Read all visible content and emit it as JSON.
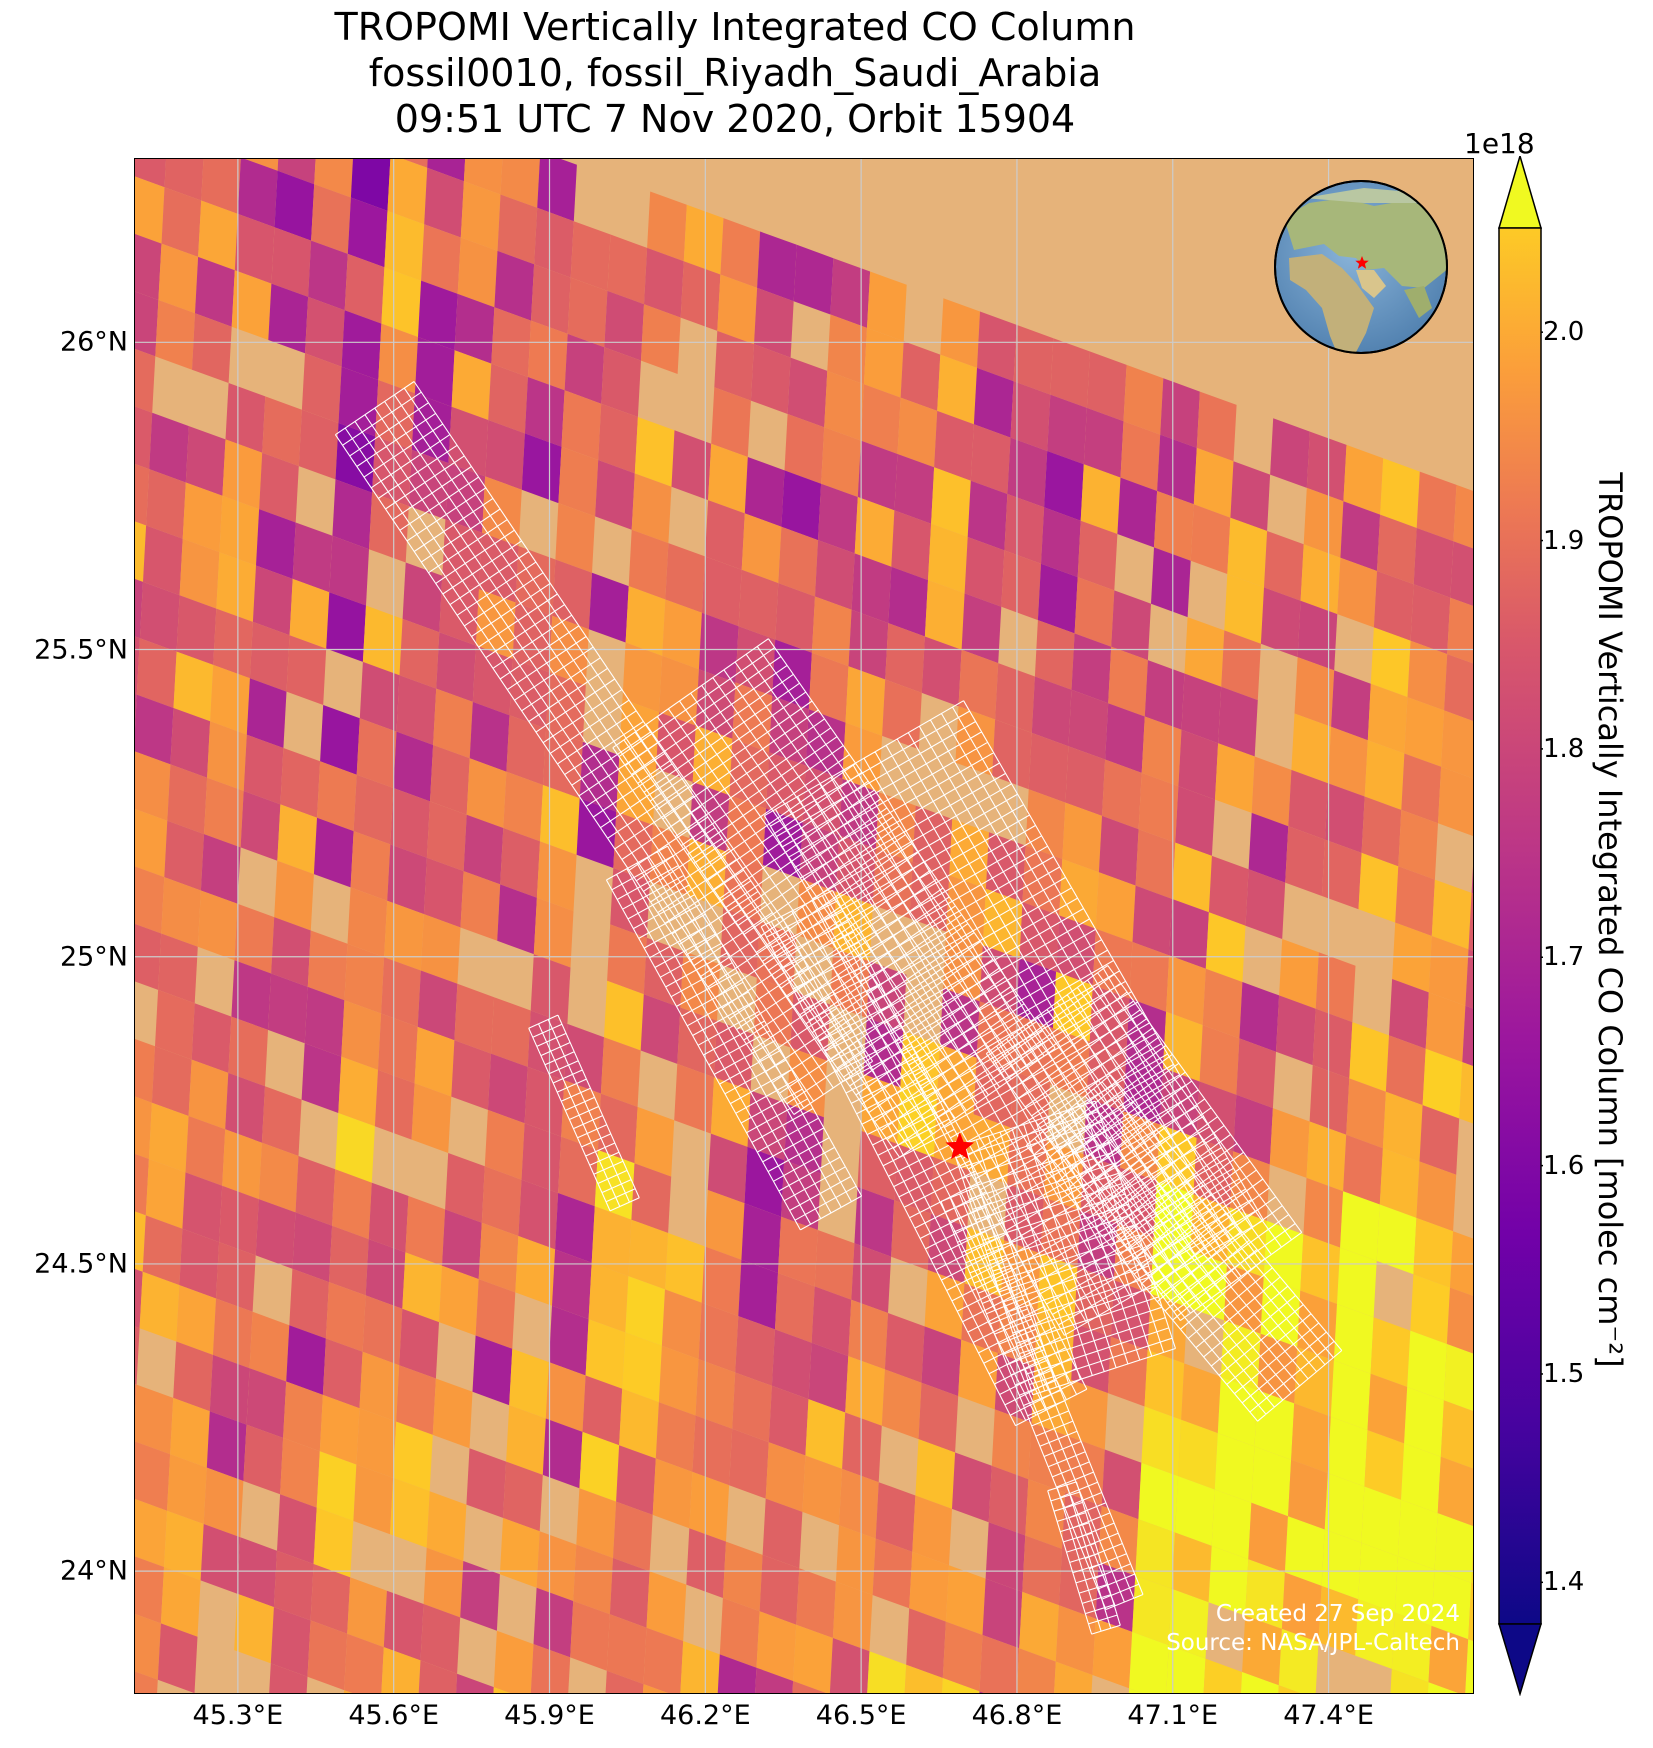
{
  "title": {
    "line1": "TROPOMI Vertically Integrated CO Column",
    "line2": "fossil0010, fossil_Riyadh_Saudi_Arabia",
    "line3": "09:51 UTC 7 Nov 2020, Orbit 15904"
  },
  "map": {
    "lon_range": [
      45.1,
      47.68
    ],
    "lat_range": [
      23.8,
      26.3
    ],
    "lat_ticks": [
      {
        "value": 26.0,
        "label": "26°N"
      },
      {
        "value": 25.5,
        "label": "25.5°N"
      },
      {
        "value": 25.0,
        "label": "25°N"
      },
      {
        "value": 24.5,
        "label": "24.5°N"
      },
      {
        "value": 24.0,
        "label": "24°N"
      }
    ],
    "lon_ticks": [
      {
        "value": 45.3,
        "label": "45.3°E"
      },
      {
        "value": 45.6,
        "label": "45.6°E"
      },
      {
        "value": 45.9,
        "label": "45.9°E"
      },
      {
        "value": 46.2,
        "label": "46.2°E"
      },
      {
        "value": 46.5,
        "label": "46.5°E"
      },
      {
        "value": 46.8,
        "label": "46.8°E"
      },
      {
        "value": 47.1,
        "label": "47.1°E"
      },
      {
        "value": 47.4,
        "label": "47.4°E"
      }
    ],
    "target_marker": {
      "lon": 46.69,
      "lat": 24.69,
      "color": "#ff0000"
    },
    "credits": {
      "line1": "Created 27 Sep 2024",
      "line2": "Source: NASA/JPL-Caltech"
    },
    "inset_globe": {
      "marker_color": "#ff0000"
    }
  },
  "colorbar": {
    "colormap": "plasma",
    "range": [
      1.38,
      2.05
    ],
    "exponent_label": "1e18",
    "label": "TROPOMI Vertically Integrated CO Column [molec cm⁻²]",
    "ticks": [
      {
        "value": 1.4,
        "label": "1.4"
      },
      {
        "value": 1.5,
        "label": "1.5"
      },
      {
        "value": 1.6,
        "label": "1.6"
      },
      {
        "value": 1.7,
        "label": "1.7"
      },
      {
        "value": 1.8,
        "label": "1.8"
      },
      {
        "value": 1.9,
        "label": "1.9"
      },
      {
        "value": 2.0,
        "label": "2.0"
      }
    ]
  },
  "colors": {
    "desert": "#e6b37a",
    "grid": "#cccccc",
    "target_grid": "#ffffff"
  }
}
